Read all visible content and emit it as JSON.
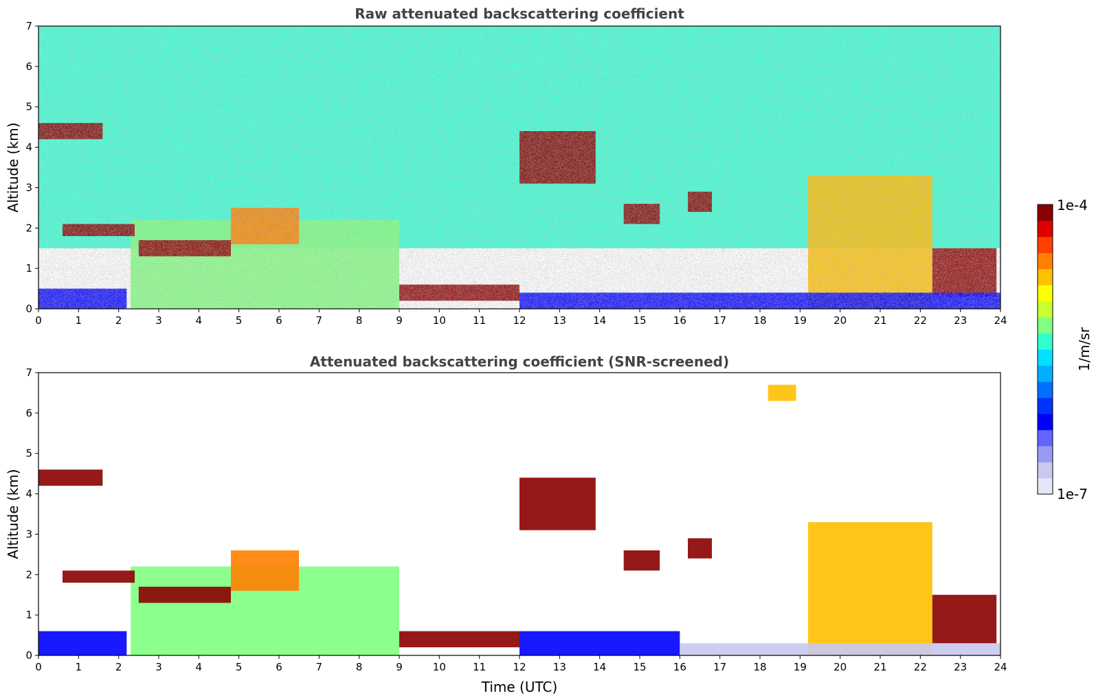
{
  "chart_data": [
    {
      "type": "heatmap",
      "title": "Raw attenuated backscattering coefficient",
      "xlabel": "",
      "ylabel": "Altitude (km)",
      "xlim": [
        0,
        24
      ],
      "ylim": [
        0,
        7
      ],
      "x_ticks": [
        "0",
        "1",
        "2",
        "3",
        "4",
        "5",
        "6",
        "7",
        "8",
        "9",
        "10",
        "11",
        "12",
        "13",
        "14",
        "15",
        "16",
        "17",
        "18",
        "19",
        "20",
        "21",
        "22",
        "23",
        "24"
      ],
      "y_ticks": [
        "0",
        "1",
        "2",
        "3",
        "4",
        "5",
        "6",
        "7"
      ],
      "features": [
        {
          "feature": "noisy upper background",
          "t": [
            0,
            24
          ],
          "alt_km": [
            1.5,
            7
          ],
          "value": 4e-06
        },
        {
          "feature": "near-surface layer",
          "t": [
            0,
            2.2
          ],
          "alt_km": [
            0,
            0.5
          ],
          "value": 5e-07
        },
        {
          "feature": "boundary layer plumes",
          "t": [
            2.3,
            9.0
          ],
          "alt_km": [
            0,
            2.2
          ],
          "value": 6e-06
        },
        {
          "feature": "cloud layer",
          "t": [
            0,
            1.6
          ],
          "alt_km": [
            4.2,
            4.6
          ],
          "value": 0.0001
        },
        {
          "feature": "cloud layer",
          "t": [
            0.6,
            2.4
          ],
          "alt_km": [
            1.8,
            2.1
          ],
          "value": 0.0001
        },
        {
          "feature": "cloud layer",
          "t": [
            2.5,
            4.8
          ],
          "alt_km": [
            1.3,
            1.7
          ],
          "value": 0.0001
        },
        {
          "feature": "aerosol layer",
          "t": [
            4.8,
            6.5
          ],
          "alt_km": [
            1.6,
            2.5
          ],
          "value": 3e-05
        },
        {
          "feature": "cloud layer",
          "t": [
            9.0,
            12.0
          ],
          "alt_km": [
            0.2,
            0.6
          ],
          "value": 0.0001
        },
        {
          "feature": "cloud layer",
          "t": [
            12.0,
            13.9
          ],
          "alt_km": [
            3.1,
            4.4
          ],
          "value": 0.0001
        },
        {
          "feature": "cloud layer",
          "t": [
            14.6,
            15.5
          ],
          "alt_km": [
            2.1,
            2.6
          ],
          "value": 0.0001
        },
        {
          "feature": "cloud layer",
          "t": [
            16.2,
            16.8
          ],
          "alt_km": [
            2.4,
            2.9
          ],
          "value": 0.0001
        },
        {
          "feature": "convective plumes",
          "t": [
            19.2,
            22.3
          ],
          "alt_km": [
            0,
            3.3
          ],
          "value": 2e-05
        },
        {
          "feature": "cloud layer",
          "t": [
            22.3,
            23.9
          ],
          "alt_km": [
            0.3,
            1.5
          ],
          "value": 0.0001
        },
        {
          "feature": "low dense layer",
          "t": [
            12.0,
            24.0
          ],
          "alt_km": [
            0,
            0.4
          ],
          "value": 5e-07
        }
      ]
    },
    {
      "type": "heatmap",
      "title": "Attenuated backscattering coefficient (SNR-screened)",
      "xlabel": "Time (UTC)",
      "ylabel": "Altitude (km)",
      "xlim": [
        0,
        24
      ],
      "ylim": [
        0,
        7
      ],
      "x_ticks": [
        "0",
        "1",
        "2",
        "3",
        "4",
        "5",
        "6",
        "7",
        "8",
        "9",
        "10",
        "11",
        "12",
        "13",
        "14",
        "15",
        "16",
        "17",
        "18",
        "19",
        "20",
        "21",
        "22",
        "23",
        "24"
      ],
      "y_ticks": [
        "0",
        "1",
        "2",
        "3",
        "4",
        "5",
        "6",
        "7"
      ],
      "screened": true,
      "features": [
        {
          "feature": "near-surface layer",
          "t": [
            0,
            2.2
          ],
          "alt_km": [
            0,
            0.6
          ],
          "value": 5e-07
        },
        {
          "feature": "boundary layer plumes",
          "t": [
            2.3,
            9.0
          ],
          "alt_km": [
            0,
            2.2
          ],
          "value": 6e-06
        },
        {
          "feature": "cloud layer",
          "t": [
            0,
            1.6
          ],
          "alt_km": [
            4.2,
            4.6
          ],
          "value": 0.0001
        },
        {
          "feature": "cloud layer",
          "t": [
            0.6,
            2.4
          ],
          "alt_km": [
            1.8,
            2.1
          ],
          "value": 0.0001
        },
        {
          "feature": "cloud layer",
          "t": [
            2.5,
            4.8
          ],
          "alt_km": [
            1.3,
            1.7
          ],
          "value": 0.0001
        },
        {
          "feature": "aerosol layer",
          "t": [
            4.8,
            6.5
          ],
          "alt_km": [
            1.6,
            2.6
          ],
          "value": 3e-05
        },
        {
          "feature": "cloud layer",
          "t": [
            9.0,
            12.0
          ],
          "alt_km": [
            0.2,
            0.6
          ],
          "value": 0.0001
        },
        {
          "feature": "cloud layer",
          "t": [
            12.0,
            13.9
          ],
          "alt_km": [
            3.1,
            4.4
          ],
          "value": 0.0001
        },
        {
          "feature": "cloud layer",
          "t": [
            14.6,
            15.5
          ],
          "alt_km": [
            2.1,
            2.6
          ],
          "value": 0.0001
        },
        {
          "feature": "cloud layer",
          "t": [
            16.2,
            16.8
          ],
          "alt_km": [
            2.4,
            2.9
          ],
          "value": 0.0001
        },
        {
          "feature": "convective plumes",
          "t": [
            19.2,
            22.3
          ],
          "alt_km": [
            0,
            3.3
          ],
          "value": 2e-05
        },
        {
          "feature": "cloud layer",
          "t": [
            22.3,
            23.9
          ],
          "alt_km": [
            0.3,
            1.5
          ],
          "value": 0.0001
        },
        {
          "feature": "low layer",
          "t": [
            12.0,
            16.0
          ],
          "alt_km": [
            0,
            0.6
          ],
          "value": 5e-07
        },
        {
          "feature": "faint surface layer",
          "t": [
            16.0,
            24.0
          ],
          "alt_km": [
            0,
            0.3
          ],
          "value": 2e-07
        },
        {
          "feature": "high cloud fragment",
          "t": [
            18.2,
            18.9
          ],
          "alt_km": [
            6.3,
            6.7
          ],
          "value": 2e-05
        }
      ]
    }
  ],
  "colorbar": {
    "label": "1/m/sr",
    "max_label": "1e-4",
    "min_label": "1e-7",
    "colormap": "jet",
    "scale": "log",
    "range": [
      1e-07,
      0.0001
    ],
    "colors": [
      "#e6e6fa",
      "#c8c8f0",
      "#9a9af5",
      "#6464ff",
      "#0000ff",
      "#0033ff",
      "#0070ff",
      "#00b0ff",
      "#00e0ff",
      "#30ffd0",
      "#80ff80",
      "#c8ff30",
      "#ffff00",
      "#ffc000",
      "#ff8000",
      "#ff4000",
      "#e00000",
      "#8b0000"
    ]
  }
}
